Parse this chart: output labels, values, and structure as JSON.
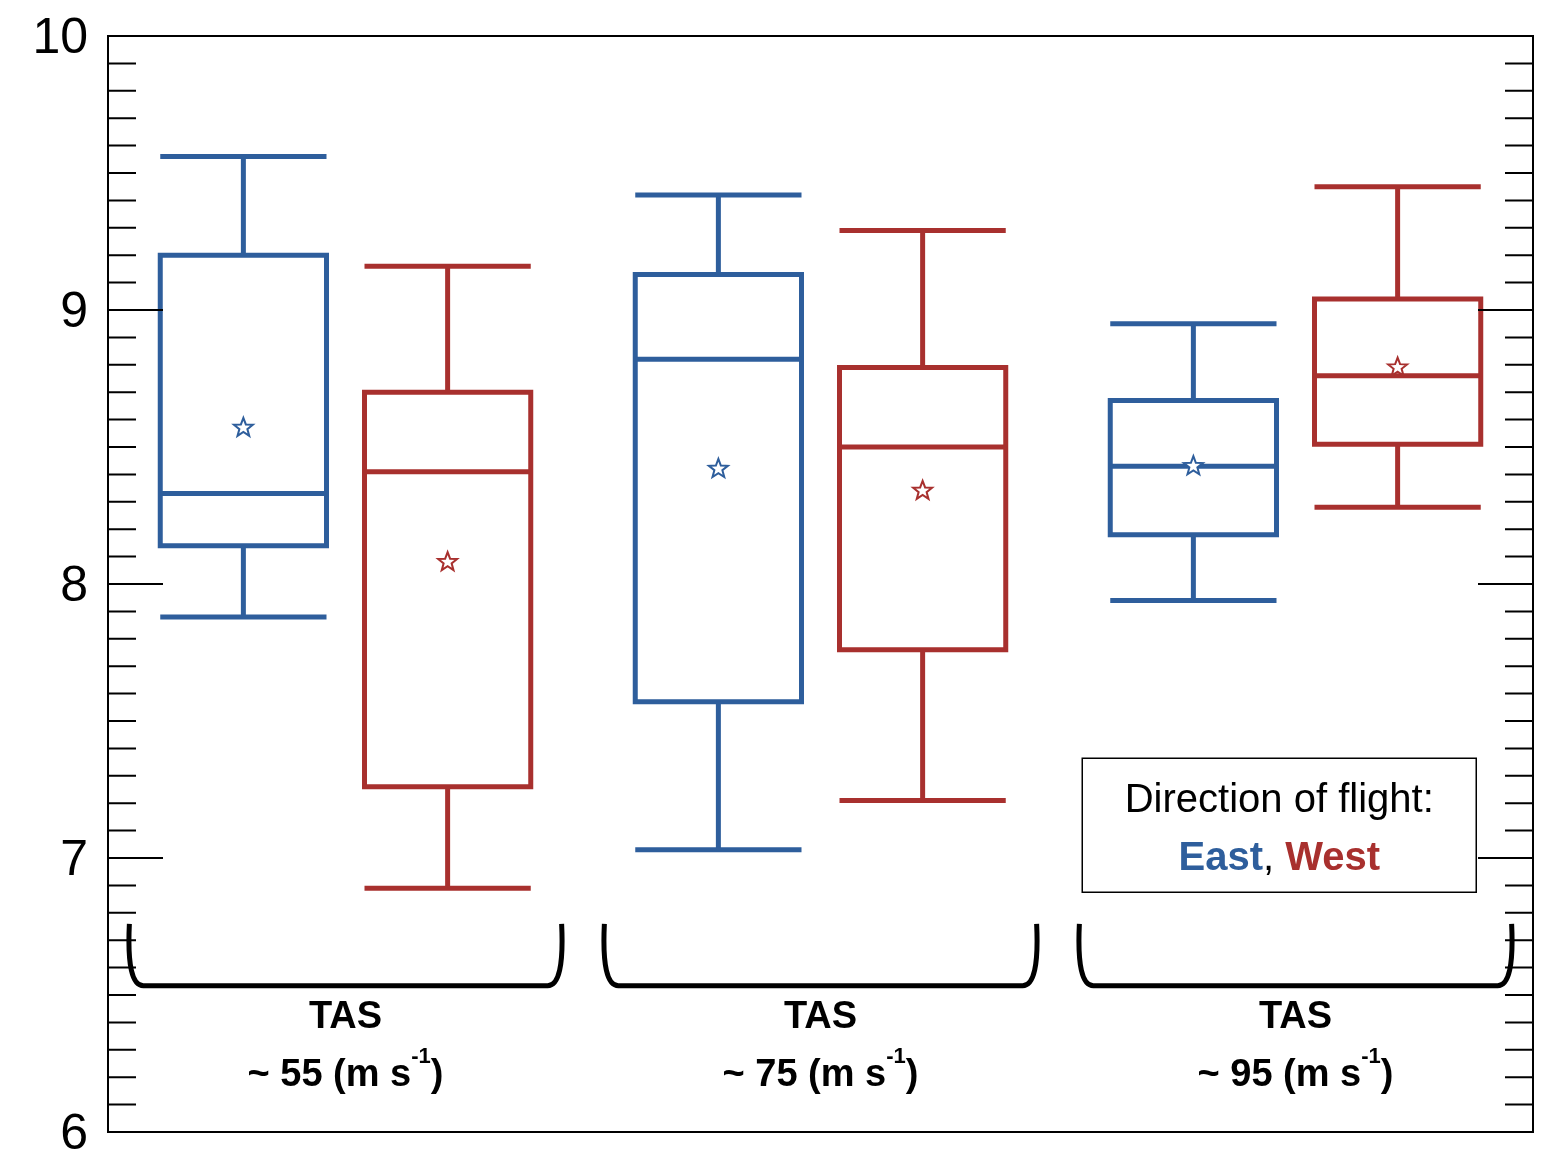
{
  "chart_data": {
    "type": "box",
    "categories": [
      "TAS\n~ 55 (m s$^{-1}$)",
      "TAS\n~ 75 (m s$^{-1}$)",
      "TAS\n~ 95 (m s$^{-1}$)"
    ],
    "series": [
      {
        "name": "East",
        "color": "#2e5e9c",
        "boxes": [
          {
            "low": 7.88,
            "q1": 8.14,
            "median": 8.33,
            "q3": 9.2,
            "high": 9.56,
            "mean": 8.57
          },
          {
            "low": 7.03,
            "q1": 7.57,
            "median": 8.82,
            "q3": 9.13,
            "high": 9.42,
            "mean": 8.42
          },
          {
            "low": 7.94,
            "q1": 8.18,
            "median": 8.43,
            "q3": 8.67,
            "high": 8.95,
            "mean": 8.43
          }
        ]
      },
      {
        "name": "West",
        "color": "#a8302e",
        "boxes": [
          {
            "low": 6.89,
            "q1": 7.26,
            "median": 8.41,
            "q3": 8.7,
            "high": 9.16,
            "mean": 8.08
          },
          {
            "low": 7.21,
            "q1": 7.76,
            "median": 8.5,
            "q3": 8.79,
            "high": 9.29,
            "mean": 8.34
          },
          {
            "low": 8.28,
            "q1": 8.51,
            "median": 8.76,
            "q3": 9.04,
            "high": 9.45,
            "mean": 8.79
          }
        ]
      }
    ],
    "ylim": [
      6,
      10
    ],
    "yticks": [
      6,
      7,
      8,
      9,
      10
    ],
    "legend": "bottom right",
    "legend_title": "Direction of flight:",
    "annotations": [
      ","
    ],
    "marker": "star"
  }
}
